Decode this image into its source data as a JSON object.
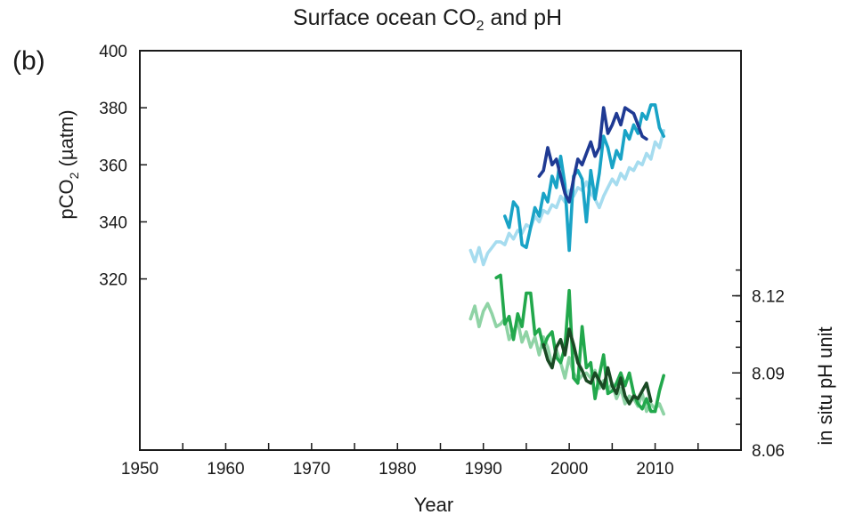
{
  "chart_data": {
    "type": "line",
    "title": "Surface ocean CO",
    "title_subscript": "2",
    "title_suffix": " and pH",
    "panel_label": "(b)",
    "xlabel": "Year",
    "xlim": [
      1950,
      2020
    ],
    "x_ticks": [
      1950,
      1960,
      1970,
      1980,
      1990,
      2000,
      2010
    ],
    "y_left": {
      "label": "pCO",
      "label_subscript": "2",
      "label_suffix": " (µatm)",
      "lim": [
        260,
        400
      ],
      "ticks": [
        320,
        340,
        360,
        380,
        400
      ]
    },
    "y_right": {
      "label": "in situ pH unit",
      "lim": [
        8.06,
        8.2153
      ],
      "ticks": [
        8.06,
        8.09,
        8.12
      ],
      "tick_labels": [
        "8.06",
        "8.09",
        "8.12"
      ]
    },
    "grid": false,
    "series": [
      {
        "axis": "left",
        "color": "#a6dcef",
        "x": [
          1988.5,
          1989.0,
          1989.5,
          1990.0,
          1990.5,
          1991.0,
          1991.5,
          1992.0,
          1992.5,
          1993.0,
          1993.5,
          1994.0,
          1994.5,
          1995.0,
          1995.5,
          1996.0,
          1996.5,
          1997.0,
          1997.5,
          1998.0,
          1998.5,
          1999.0,
          1999.5,
          2000.0,
          2000.5,
          2001.0,
          2001.5,
          2002.0,
          2002.5,
          2003.0,
          2003.5,
          2004.0,
          2004.5,
          2005.0,
          2005.5,
          2006.0,
          2006.5,
          2007.0,
          2007.5,
          2008.0,
          2008.5,
          2009.0,
          2009.5,
          2010.0,
          2010.5,
          2011.0
        ],
        "y": [
          330,
          326,
          331,
          325,
          329,
          331,
          333,
          333,
          332,
          336,
          334,
          337,
          336,
          339,
          338,
          342,
          340,
          344,
          343,
          346,
          345,
          349,
          347,
          351,
          349,
          352,
          351,
          354,
          350,
          348,
          345,
          349,
          352,
          355,
          353,
          357,
          355,
          359,
          358,
          361,
          360,
          364,
          362,
          368,
          366,
          372
        ]
      },
      {
        "axis": "left",
        "color": "#19a3c6",
        "x": [
          1992.5,
          1993.0,
          1993.5,
          1994.0,
          1994.5,
          1995.0,
          1995.5,
          1996.0,
          1996.5,
          1997.0,
          1997.5,
          1998.0,
          1998.5,
          1999.0,
          1999.5,
          2000.0,
          2000.5,
          2001.0,
          2001.5,
          2002.0,
          2002.5,
          2003.0,
          2003.5,
          2004.0,
          2004.5,
          2005.0,
          2005.5,
          2006.0,
          2006.5,
          2007.0,
          2007.5,
          2008.0,
          2008.5,
          2009.0,
          2009.5,
          2010.0,
          2010.5,
          2011.0
        ],
        "y": [
          342,
          338,
          347,
          345,
          332,
          331,
          338,
          345,
          342,
          350,
          347,
          356,
          352,
          363,
          353,
          330,
          356,
          358,
          355,
          340,
          358,
          348,
          357,
          370,
          366,
          359,
          365,
          362,
          372,
          369,
          374,
          371,
          378,
          376,
          381,
          381,
          373,
          370
        ]
      },
      {
        "axis": "left",
        "color": "#1f3a93",
        "x": [
          1996.5,
          1997.0,
          1997.5,
          1998.0,
          1998.5,
          1999.0,
          1999.5,
          2000.0,
          2000.5,
          2001.0,
          2001.5,
          2002.0,
          2002.5,
          2003.0,
          2003.5,
          2004.0,
          2004.5,
          2005.0,
          2005.5,
          2006.0,
          2006.5,
          2007.0,
          2007.5,
          2008.0,
          2008.5,
          2009.0
        ],
        "y": [
          356,
          358,
          366,
          360,
          362,
          356,
          350,
          347,
          355,
          362,
          360,
          364,
          368,
          363,
          366,
          380,
          371,
          374,
          378,
          374,
          380,
          379,
          378,
          374,
          370,
          369
        ]
      },
      {
        "axis": "right",
        "color": "#8fd3a5",
        "x": [
          1988.5,
          1989.0,
          1989.5,
          1990.0,
          1990.5,
          1991.0,
          1991.5,
          1992.0,
          1992.5,
          1993.0,
          1993.5,
          1994.0,
          1994.5,
          1995.0,
          1995.5,
          1996.0,
          1996.5,
          1997.0,
          1997.5,
          1998.0,
          1998.5,
          1999.0,
          1999.5,
          2000.0,
          2000.5,
          2001.0,
          2001.5,
          2002.0,
          2002.5,
          2003.0,
          2003.5,
          2004.0,
          2004.5,
          2005.0,
          2005.5,
          2006.0,
          2006.5,
          2007.0,
          2007.5,
          2008.0,
          2008.5,
          2009.0,
          2009.5,
          2010.0,
          2010.5,
          2011.0
        ],
        "y": [
          8.111,
          8.116,
          8.108,
          8.114,
          8.117,
          8.113,
          8.108,
          8.109,
          8.111,
          8.103,
          8.106,
          8.11,
          8.102,
          8.106,
          8.1,
          8.104,
          8.097,
          8.104,
          8.1,
          8.093,
          8.099,
          8.094,
          8.088,
          8.096,
          8.09,
          8.087,
          8.089,
          8.09,
          8.088,
          8.091,
          8.084,
          8.087,
          8.083,
          8.086,
          8.08,
          8.084,
          8.078,
          8.081,
          8.08,
          8.077,
          8.082,
          8.075,
          8.078,
          8.076,
          8.078,
          8.074
        ]
      },
      {
        "axis": "right",
        "color": "#22a84c",
        "x": [
          1991.5,
          1992.0,
          1992.5,
          1993.0,
          1993.5,
          1994.0,
          1994.5,
          1995.0,
          1995.5,
          1996.0,
          1996.5,
          1997.0,
          1997.5,
          1998.0,
          1998.5,
          1999.0,
          1999.5,
          2000.0,
          2000.5,
          2001.0,
          2001.5,
          2002.0,
          2002.5,
          2003.0,
          2003.5,
          2004.0,
          2004.5,
          2005.0,
          2005.5,
          2006.0,
          2006.5,
          2007.0,
          2007.5,
          2008.0,
          2008.5,
          2009.0,
          2009.5,
          2010.0,
          2010.5,
          2011.0
        ],
        "y": [
          8.127,
          8.128,
          8.109,
          8.112,
          8.103,
          8.113,
          8.108,
          8.121,
          8.121,
          8.105,
          8.107,
          8.1,
          8.104,
          8.106,
          8.096,
          8.094,
          8.1,
          8.122,
          8.088,
          8.086,
          8.108,
          8.092,
          8.094,
          8.08,
          8.089,
          8.097,
          8.082,
          8.083,
          8.086,
          8.09,
          8.085,
          8.09,
          8.082,
          8.078,
          8.076,
          8.08,
          8.075,
          8.075,
          8.083,
          8.089
        ]
      },
      {
        "axis": "right",
        "color": "#1a4a24",
        "x": [
          1997.0,
          1997.5,
          1998.0,
          1998.5,
          1999.0,
          1999.5,
          2000.0,
          2000.5,
          2001.0,
          2001.5,
          2002.0,
          2002.5,
          2003.0,
          2003.5,
          2004.0,
          2004.5,
          2005.0,
          2005.5,
          2006.0,
          2006.5,
          2007.0,
          2007.5,
          2008.0,
          2008.5,
          2009.0,
          2009.5
        ],
        "y": [
          8.101,
          8.095,
          8.092,
          8.1,
          8.103,
          8.097,
          8.107,
          8.101,
          8.094,
          8.091,
          8.087,
          8.086,
          8.09,
          8.087,
          8.084,
          8.092,
          8.085,
          8.082,
          8.088,
          8.081,
          8.078,
          8.081,
          8.08,
          8.083,
          8.086,
          8.079
        ]
      }
    ]
  }
}
